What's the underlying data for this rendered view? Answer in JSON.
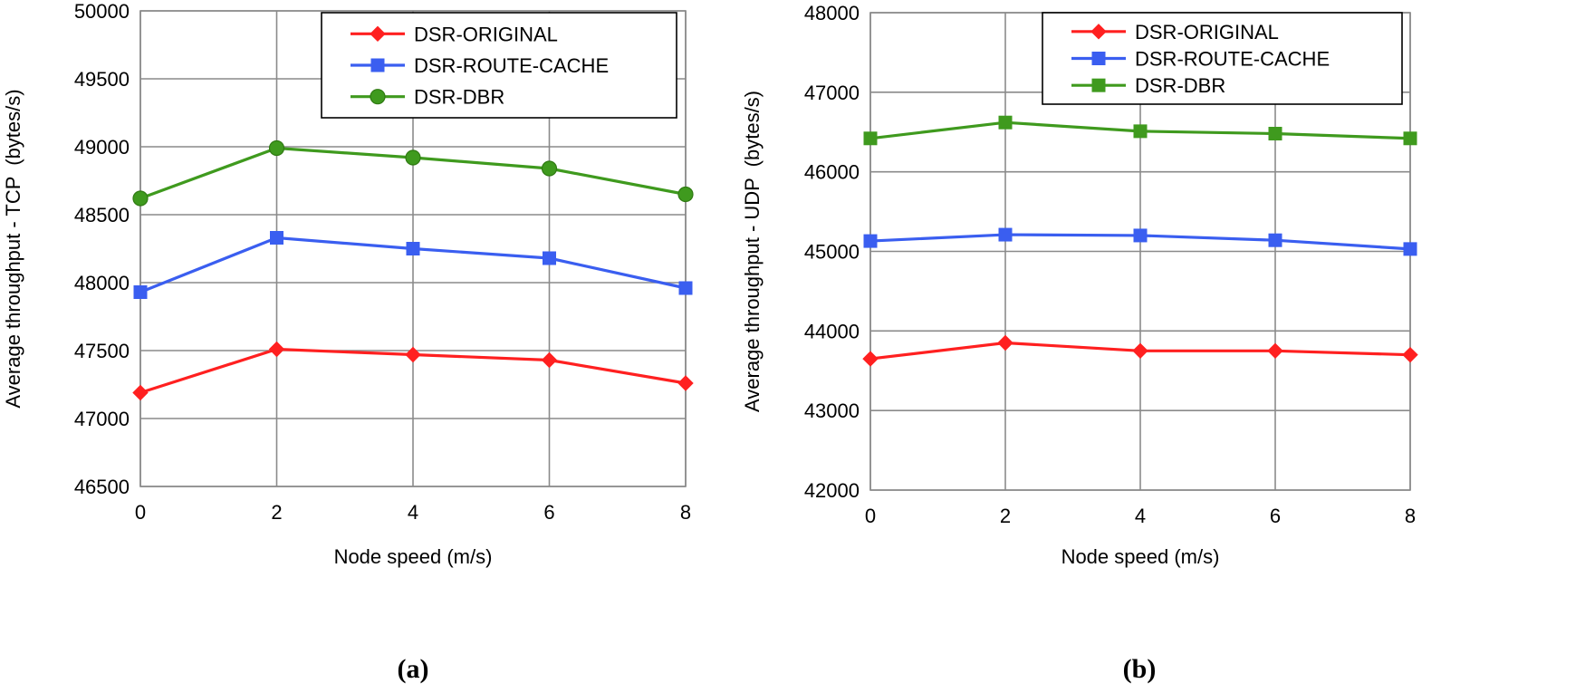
{
  "chart_data": [
    {
      "type": "line",
      "panel_label": "(a)",
      "xlabel": "Node speed (m/s)",
      "ylabel": "Average throughput - TCP  (bytes/s)",
      "x": [
        0,
        2,
        4,
        6,
        8
      ],
      "xlim": [
        0,
        8
      ],
      "ylim": [
        46500,
        50000
      ],
      "yticks": [
        46500,
        47000,
        47500,
        48000,
        48500,
        49000,
        49500,
        50000
      ],
      "grid": true,
      "legend_position": "top-right",
      "series": [
        {
          "name": "DSR-ORIGINAL",
          "color": "#ff2020",
          "marker": "diamond",
          "values": [
            47190,
            47510,
            47470,
            47430,
            47260
          ]
        },
        {
          "name": "DSR-ROUTE-CACHE",
          "color": "#3a5ef0",
          "marker": "square",
          "values": [
            47930,
            48330,
            48250,
            48180,
            47960
          ]
        },
        {
          "name": "DSR-DBR",
          "color": "#3f9a1e",
          "marker": "circle",
          "values": [
            48620,
            48990,
            48920,
            48840,
            48650
          ]
        }
      ]
    },
    {
      "type": "line",
      "panel_label": "(b)",
      "xlabel": "Node speed (m/s)",
      "ylabel": "Average throughput - UDP  (bytes/s)",
      "x": [
        0,
        2,
        4,
        6,
        8
      ],
      "xlim": [
        0,
        8
      ],
      "ylim": [
        42000,
        48000
      ],
      "yticks": [
        42000,
        43000,
        44000,
        45000,
        46000,
        47000,
        48000
      ],
      "grid": true,
      "legend_position": "top-right",
      "series": [
        {
          "name": "DSR-ORIGINAL",
          "color": "#ff2020",
          "marker": "diamond",
          "values": [
            43650,
            43850,
            43750,
            43750,
            43700
          ]
        },
        {
          "name": "DSR-ROUTE-CACHE",
          "color": "#3a5ef0",
          "marker": "square",
          "values": [
            45130,
            45210,
            45200,
            45140,
            45030
          ]
        },
        {
          "name": "DSR-DBR",
          "color": "#3f9a1e",
          "marker": "square",
          "values": [
            46420,
            46620,
            46510,
            46480,
            46420
          ]
        }
      ]
    }
  ]
}
